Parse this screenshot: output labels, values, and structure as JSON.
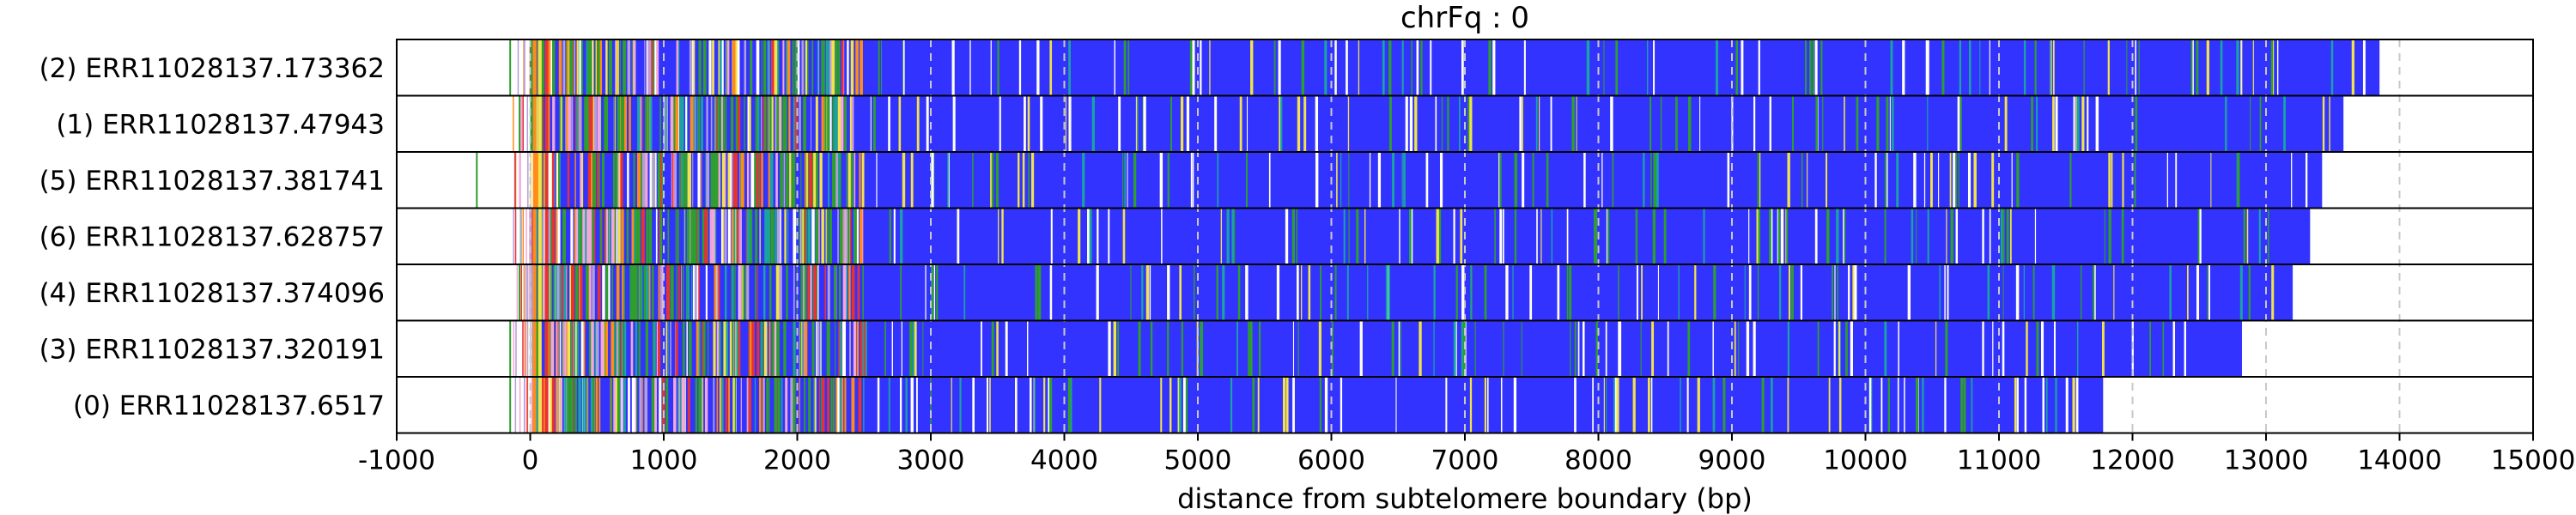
{
  "chart_data": {
    "type": "bar",
    "title": "chrFq : 0",
    "xlabel": "distance from subtelomere boundary (bp)",
    "ylabel": "",
    "xlim": [
      -1000,
      15000
    ],
    "x_ticks": [
      -1000,
      0,
      1000,
      2000,
      3000,
      4000,
      5000,
      6000,
      7000,
      8000,
      9000,
      10000,
      11000,
      12000,
      13000,
      14000,
      15000
    ],
    "grid": "vertical dashed at each 1000 bp",
    "rows": [
      {
        "label": "(2) ERR11028137.173362",
        "start": -150,
        "end": 13850
      },
      {
        "label": "(1) ERR11028137.47943",
        "start": -80,
        "end": 13580
      },
      {
        "label": "(5) ERR11028137.381741",
        "start": -400,
        "end": 13420
      },
      {
        "label": "(6) ERR11028137.628757",
        "start": -70,
        "end": 13330
      },
      {
        "label": "(4) ERR11028137.374096",
        "start": -80,
        "end": 13200
      },
      {
        "label": "(3) ERR11028137.320191",
        "start": -150,
        "end": 12820
      },
      {
        "label": "(0) ERR11028137.6517",
        "start": -150,
        "end": 11780
      }
    ],
    "colors": {
      "base": "#3333ff",
      "green": "#2e9e2e",
      "yellow": "#f2e34a",
      "white": "#ffffff",
      "pink": "#f4a6d7",
      "teal": "#1aa3a3",
      "orange": "#ff8c1a",
      "red": "#e83232",
      "lavender": "#b39ddb"
    }
  }
}
